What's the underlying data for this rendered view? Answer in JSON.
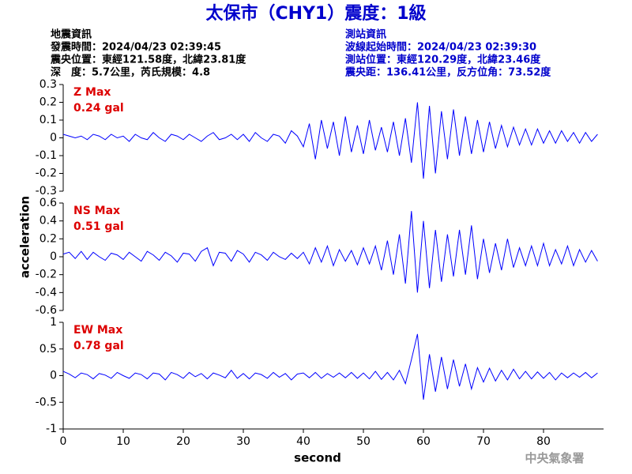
{
  "title": "太保市（CHY1）震度：1級",
  "event_info": [
    "地震資訊",
    "發震時間：2024/04/23 02:39:45",
    "震央位置：東經121.58度，北緯23.81度",
    "深　度：5.7公里，芮氏規模：4.8"
  ],
  "station_info": [
    "測站資訊",
    "波線起始時間：2024/04/23 02:39:30",
    "測站位置：東經120.29度，北緯23.46度",
    "震央距：136.41公里，反方位角：73.52度"
  ],
  "watermark": "中央氣象署",
  "chart_data": [
    {
      "type": "line",
      "annotations": [
        "Z Max",
        "0.24 gal"
      ],
      "color": "#0000ff",
      "xlim": [
        0,
        90
      ],
      "ylim": [
        -0.3,
        0.3
      ],
      "yticks": [
        0.3,
        0.2,
        0.1,
        0,
        -0.1,
        -0.2,
        -0.3
      ],
      "x": [
        0,
        1,
        2,
        3,
        4,
        5,
        6,
        7,
        8,
        9,
        10,
        11,
        12,
        13,
        14,
        15,
        16,
        17,
        18,
        19,
        20,
        21,
        22,
        23,
        24,
        25,
        26,
        27,
        28,
        29,
        30,
        31,
        32,
        33,
        34,
        35,
        36,
        37,
        38,
        39,
        40,
        41,
        42,
        43,
        44,
        45,
        46,
        47,
        48,
        49,
        50,
        51,
        52,
        53,
        54,
        55,
        56,
        57,
        58,
        59,
        60,
        61,
        62,
        63,
        64,
        65,
        66,
        67,
        68,
        69,
        70,
        71,
        72,
        73,
        74,
        75,
        76,
        77,
        78,
        79,
        80,
        81,
        82,
        83,
        84,
        85,
        86,
        87,
        88,
        89
      ],
      "values": [
        0.02,
        0.01,
        0,
        0.01,
        -0.01,
        0.02,
        0.01,
        -0.01,
        0.02,
        0,
        0.01,
        -0.02,
        0.02,
        0,
        -0.01,
        0.03,
        0,
        -0.02,
        0.02,
        0.01,
        -0.01,
        0.02,
        0,
        -0.02,
        0.01,
        0.03,
        -0.01,
        0,
        0.02,
        -0.01,
        0.02,
        -0.02,
        0.03,
        0,
        -0.02,
        0.02,
        0.01,
        -0.03,
        0.04,
        0.01,
        -0.05,
        0.08,
        -0.12,
        0.1,
        -0.06,
        0.09,
        -0.1,
        0.12,
        -0.08,
        0.07,
        -0.09,
        0.1,
        -0.07,
        0.06,
        -0.08,
        0.09,
        -0.1,
        0.11,
        -0.14,
        0.2,
        -0.23,
        0.18,
        -0.2,
        0.15,
        -0.12,
        0.16,
        -0.1,
        0.12,
        -0.09,
        0.1,
        -0.08,
        0.09,
        -0.06,
        0.07,
        -0.05,
        0.06,
        -0.04,
        0.05,
        -0.04,
        0.05,
        -0.03,
        0.04,
        -0.03,
        0.04,
        -0.02,
        0.03,
        -0.03,
        0.03,
        -0.02,
        0.02
      ]
    },
    {
      "type": "line",
      "annotations": [
        "NS Max",
        "0.51 gal"
      ],
      "ylabel": "acceleration",
      "color": "#0000ff",
      "xlim": [
        0,
        90
      ],
      "ylim": [
        -0.6,
        0.6
      ],
      "yticks": [
        0.6,
        0.4,
        0.2,
        0,
        -0.2,
        -0.4,
        -0.6
      ],
      "x": [
        0,
        1,
        2,
        3,
        4,
        5,
        6,
        7,
        8,
        9,
        10,
        11,
        12,
        13,
        14,
        15,
        16,
        17,
        18,
        19,
        20,
        21,
        22,
        23,
        24,
        25,
        26,
        27,
        28,
        29,
        30,
        31,
        32,
        33,
        34,
        35,
        36,
        37,
        38,
        39,
        40,
        41,
        42,
        43,
        44,
        45,
        46,
        47,
        48,
        49,
        50,
        51,
        52,
        53,
        54,
        55,
        56,
        57,
        58,
        59,
        60,
        61,
        62,
        63,
        64,
        65,
        66,
        67,
        68,
        69,
        70,
        71,
        72,
        73,
        74,
        75,
        76,
        77,
        78,
        79,
        80,
        81,
        82,
        83,
        84,
        85,
        86,
        87,
        88,
        89
      ],
      "values": [
        0.03,
        0.05,
        -0.02,
        0.06,
        -0.03,
        0.05,
        0,
        -0.04,
        0.04,
        0.02,
        -0.03,
        0.05,
        0,
        -0.05,
        0.06,
        0.02,
        -0.04,
        0.05,
        0.01,
        -0.06,
        0.04,
        0.03,
        -0.05,
        0.06,
        0.1,
        -0.1,
        0.05,
        0.04,
        -0.05,
        0.07,
        0.03,
        -0.06,
        0.05,
        0.02,
        -0.04,
        0.05,
        0,
        -0.03,
        0.04,
        -0.02,
        0.05,
        -0.08,
        0.1,
        -0.06,
        0.12,
        -0.1,
        0.08,
        -0.05,
        0.07,
        -0.09,
        0.1,
        -0.08,
        0.12,
        -0.15,
        0.18,
        -0.2,
        0.25,
        -0.3,
        0.51,
        -0.4,
        0.4,
        -0.35,
        0.3,
        -0.28,
        0.25,
        -0.22,
        0.3,
        -0.2,
        0.35,
        -0.25,
        0.2,
        -0.18,
        0.15,
        -0.15,
        0.2,
        -0.12,
        0.1,
        -0.1,
        0.12,
        -0.1,
        0.15,
        -0.1,
        0.08,
        -0.08,
        0.12,
        -0.1,
        0.08,
        -0.06,
        0.07,
        -0.05
      ]
    },
    {
      "type": "line",
      "annotations": [
        "EW Max",
        "0.78 gal"
      ],
      "xlabel": "second",
      "color": "#0000ff",
      "xlim": [
        0,
        90
      ],
      "xticks": [
        0,
        10,
        20,
        30,
        40,
        50,
        60,
        70,
        80
      ],
      "ylim": [
        -1,
        1
      ],
      "yticks": [
        1,
        0.5,
        0,
        -0.5,
        -1
      ],
      "x": [
        0,
        1,
        2,
        3,
        4,
        5,
        6,
        7,
        8,
        9,
        10,
        11,
        12,
        13,
        14,
        15,
        16,
        17,
        18,
        19,
        20,
        21,
        22,
        23,
        24,
        25,
        26,
        27,
        28,
        29,
        30,
        31,
        32,
        33,
        34,
        35,
        36,
        37,
        38,
        39,
        40,
        41,
        42,
        43,
        44,
        45,
        46,
        47,
        48,
        49,
        50,
        51,
        52,
        53,
        54,
        55,
        56,
        57,
        58,
        59,
        60,
        61,
        62,
        63,
        64,
        65,
        66,
        67,
        68,
        69,
        70,
        71,
        72,
        73,
        74,
        75,
        76,
        77,
        78,
        79,
        80,
        81,
        82,
        83,
        84,
        85,
        86,
        87,
        88,
        89
      ],
      "values": [
        0.08,
        0.03,
        -0.04,
        0.05,
        0.02,
        -0.06,
        0.04,
        0.01,
        -0.05,
        0.06,
        0,
        -0.05,
        0.05,
        0.02,
        -0.06,
        0.05,
        0.03,
        -0.08,
        0.06,
        0.02,
        -0.05,
        0.06,
        -0.02,
        0.04,
        -0.06,
        0.05,
        0.01,
        -0.04,
        0.1,
        -0.05,
        0.04,
        -0.06,
        0.05,
        0.02,
        -0.05,
        0.06,
        -0.03,
        0.04,
        -0.08,
        0.03,
        0.05,
        -0.04,
        0.06,
        -0.05,
        0.04,
        -0.03,
        0.05,
        -0.04,
        0.06,
        -0.05,
        0.05,
        -0.06,
        0.08,
        -0.07,
        0.06,
        -0.08,
        0.1,
        -0.15,
        0.3,
        0.78,
        -0.45,
        0.4,
        -0.3,
        0.35,
        -0.25,
        0.3,
        -0.2,
        0.22,
        -0.25,
        0.15,
        -0.12,
        0.14,
        -0.1,
        0.1,
        -0.08,
        0.12,
        -0.06,
        0.08,
        -0.06,
        0.07,
        -0.05,
        0.06,
        -0.08,
        0.05,
        -0.04,
        0.05,
        -0.03,
        0.06,
        -0.04,
        0.05
      ]
    }
  ]
}
